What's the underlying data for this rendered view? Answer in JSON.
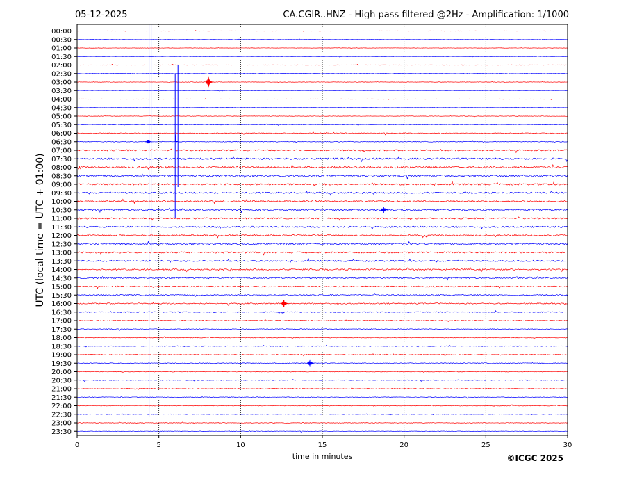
{
  "header": {
    "date": "05-12-2025",
    "title": "CA.CGIR..HNZ - High pass filtered @2Hz - Amplification: 1/1000"
  },
  "footer": {
    "copyright": "©ICGC 2025"
  },
  "colors": {
    "trace_a": "#ff0000",
    "trace_b": "#0000ff",
    "axis": "#000000",
    "grid": "#000000"
  },
  "chart_data": {
    "type": "line",
    "title": "CA.CGIR..HNZ - High pass filtered @2Hz - Amplification: 1/1000",
    "xlabel": "time in minutes",
    "ylabel": "UTC (local time = UTC + 01:00)",
    "xlim": [
      0,
      30
    ],
    "x_ticks": [
      0,
      5,
      10,
      15,
      20,
      25,
      30
    ],
    "vertical_grid": "dotted at 5, 10, 15, 20, 25",
    "rows": [
      "00:00",
      "00:30",
      "01:00",
      "01:30",
      "02:00",
      "02:30",
      "03:00",
      "03:30",
      "04:00",
      "04:30",
      "05:00",
      "05:30",
      "06:00",
      "06:30",
      "07:00",
      "07:30",
      "08:00",
      "08:30",
      "09:00",
      "09:30",
      "10:00",
      "10:30",
      "11:00",
      "11:30",
      "12:00",
      "12:30",
      "13:00",
      "13:30",
      "14:00",
      "14:30",
      "15:00",
      "15:30",
      "16:00",
      "16:30",
      "17:00",
      "17:30",
      "18:00",
      "18:30",
      "19:00",
      "19:30",
      "20:00",
      "20:30",
      "21:00",
      "21:30",
      "22:00",
      "22:30",
      "23:00",
      "23:30"
    ],
    "row_colors": "alternating red (even rows) and blue (odd rows)",
    "noise_level_by_row": [
      0.3,
      0.3,
      0.3,
      0.3,
      0.4,
      0.4,
      0.4,
      0.3,
      0.3,
      0.3,
      0.4,
      0.5,
      0.8,
      0.6,
      1.2,
      1.5,
      1.6,
      1.6,
      1.4,
      1.3,
      1.3,
      1.4,
      1.3,
      1.3,
      1.2,
      1.4,
      1.3,
      1.2,
      1.2,
      1.2,
      1.0,
      1.0,
      1.0,
      0.8,
      0.8,
      0.7,
      0.6,
      0.6,
      0.7,
      0.7,
      0.6,
      0.6,
      0.6,
      0.6,
      0.6,
      0.5,
      0.5,
      0.4
    ],
    "events": [
      {
        "row": "00:00",
        "minute": 4.4,
        "amplitude": "off-scale, spans 00:00 to 22:30 rows"
      },
      {
        "row": "03:00",
        "minute": 8.1,
        "amplitude": "spike"
      },
      {
        "row": "02:00",
        "minute": 6.0,
        "amplitude": "step, spans 02:00 to 09:00 rows"
      },
      {
        "row": "06:30",
        "minute": 4.4,
        "amplitude": "offset"
      },
      {
        "row": "10:30",
        "minute": 18.8,
        "amplitude": "burst"
      },
      {
        "row": "16:00",
        "minute": 12.7,
        "amplitude": "burst"
      },
      {
        "row": "19:30",
        "minute": 14.3,
        "amplitude": "burst"
      }
    ]
  }
}
